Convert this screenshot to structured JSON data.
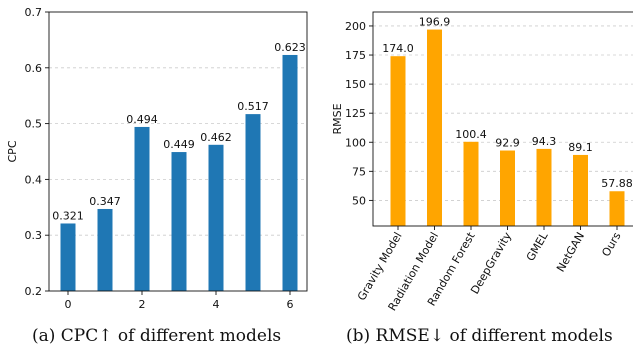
{
  "chart_data": [
    {
      "type": "bar",
      "x": [
        0,
        1,
        2,
        3,
        4,
        5,
        6
      ],
      "values": [
        0.321,
        0.347,
        0.494,
        0.449,
        0.462,
        0.517,
        0.623
      ],
      "data_labels": [
        "0.321",
        "0.347",
        "0.494",
        "0.449",
        "0.462",
        "0.517",
        "0.623"
      ],
      "xticks": [
        "0",
        "2",
        "4",
        "6"
      ],
      "xtick_values": [
        0,
        2,
        4,
        6
      ],
      "ylabel": "CPC",
      "ylim": [
        0.2,
        0.7
      ],
      "yticks": [
        "0.2",
        "0.3",
        "0.4",
        "0.5",
        "0.6",
        "0.7"
      ],
      "ytick_values": [
        0.2,
        0.3,
        0.4,
        0.5,
        0.6,
        0.7
      ],
      "grid": "horizontal dashed",
      "color": "#1f77b4",
      "caption": "(a) CPC↑ of different models"
    },
    {
      "type": "bar",
      "categories": [
        "Gravity Model",
        "Radiation Model",
        "Random Forest",
        "DeepGravity",
        "GMEL",
        "NetGAN",
        "Ours"
      ],
      "values": [
        174.0,
        196.9,
        100.4,
        92.9,
        94.3,
        89.1,
        57.88
      ],
      "data_labels": [
        "174.0",
        "196.9",
        "100.4",
        "92.9",
        "94.3",
        "89.1",
        "57.88"
      ],
      "ylabel": "RMSE",
      "ylim": [
        28,
        212
      ],
      "yticks": [
        "50",
        "75",
        "100",
        "125",
        "150",
        "175",
        "200"
      ],
      "ytick_values": [
        50,
        75,
        100,
        125,
        150,
        175,
        200
      ],
      "grid": "horizontal dashed",
      "color": "#ffa500",
      "caption": "(b) RMSE↓ of different models"
    }
  ]
}
